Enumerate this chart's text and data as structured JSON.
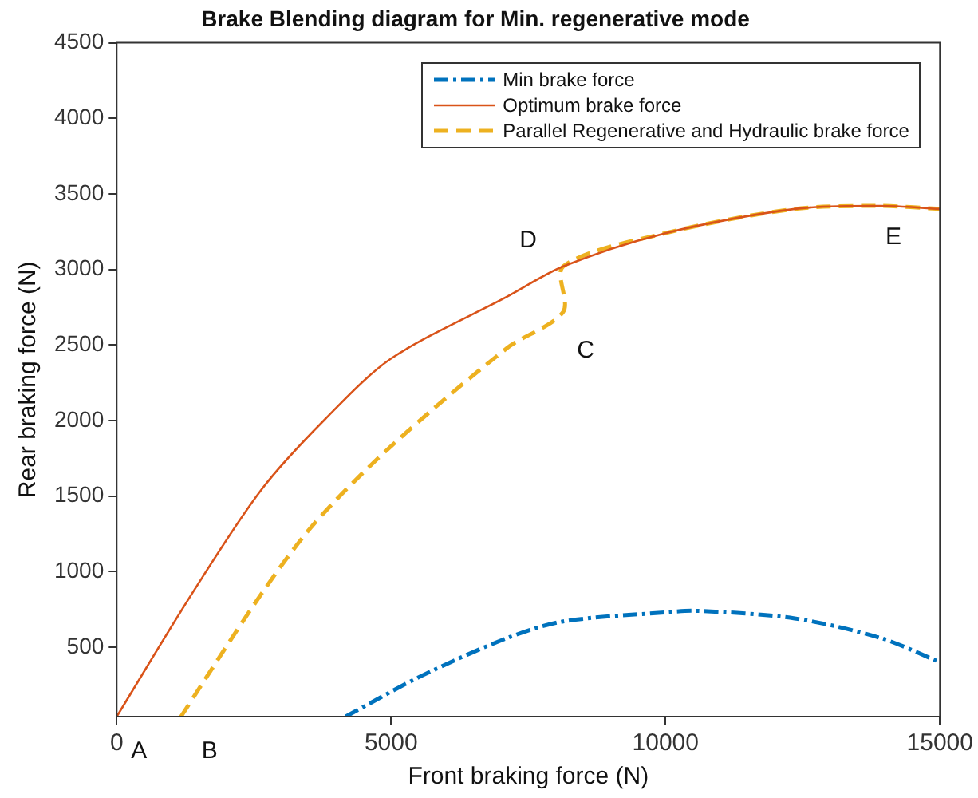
{
  "chart_data": {
    "type": "line",
    "title": "Brake Blending diagram for Min. regenerative mode",
    "xlabel": "Front braking force (N)",
    "ylabel": "Rear braking force (N)",
    "xlim": [
      0,
      15000
    ],
    "xticks": [
      0,
      5000,
      10000,
      15000
    ],
    "ylim": [
      40,
      4500
    ],
    "yticks": [
      500,
      1000,
      1500,
      2000,
      2500,
      3000,
      3500,
      4000,
      4500
    ],
    "grid": false,
    "legend": "top right",
    "marker": "none",
    "series": [
      {
        "name": "Min brake force",
        "color": "#0072bd",
        "line_style": "dashdot",
        "x": [
          4171,
          5556,
          7115,
          8137,
          10000,
          10588,
          12353,
          13922,
          15000
        ],
        "values": [
          40,
          310,
          560,
          670,
          730,
          740,
          690,
          560,
          400
        ]
      },
      {
        "name": "Optimum brake force",
        "color": "#d95319",
        "line_style": "solid",
        "x": [
          0,
          1365,
          2632,
          3801,
          5000,
          7115,
          8137,
          10000,
          12353,
          13922,
          15000
        ],
        "values": [
          40,
          850,
          1540,
          2010,
          2410,
          2820,
          3020,
          3240,
          3400,
          3420,
          3400
        ]
      },
      {
        "name": "Parallel Regenerative and Hydraulic brake force",
        "color": "#edb120",
        "line_style": "dashed",
        "x": [
          1170,
          2632,
          3606,
          5000,
          7115,
          8137,
          8137,
          10000,
          12353,
          13922,
          15000
        ],
        "values": [
          40,
          850,
          1320,
          1830,
          2480,
          2720,
          3020,
          3240,
          3400,
          3420,
          3400
        ]
      }
    ],
    "annotations": [
      {
        "text": "A",
        "x": 0,
        "y": 40
      },
      {
        "text": "B",
        "x": 1170,
        "y": 40
      },
      {
        "text": "C",
        "x": 8137,
        "y": 2715
      },
      {
        "text": "D",
        "x": 8137,
        "y": 3023
      },
      {
        "text": "E",
        "x": 13922,
        "y": 3421
      }
    ]
  }
}
